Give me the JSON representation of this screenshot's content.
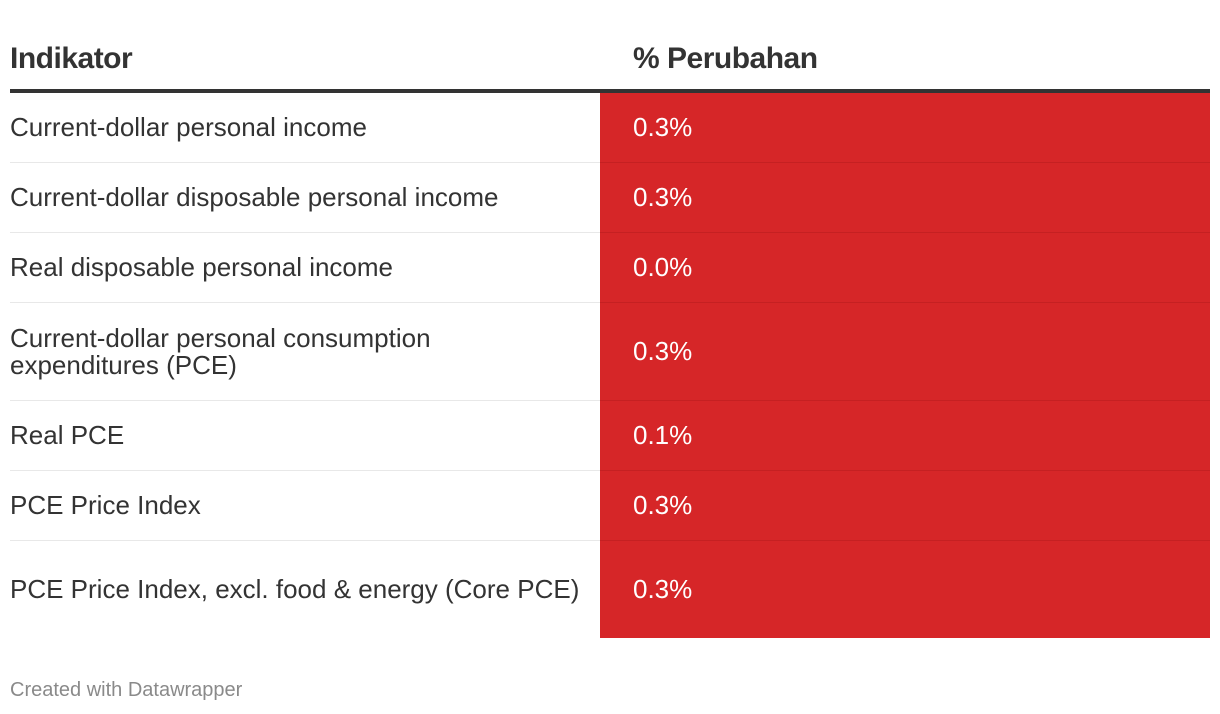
{
  "chart_data": {
    "type": "table",
    "columns": [
      "Indikator",
      "% Perubahan"
    ],
    "rows": [
      {
        "label": "Current-dollar personal income",
        "value": "0.3%"
      },
      {
        "label": "Current-dollar disposable personal income",
        "value": "0.3%"
      },
      {
        "label": "Real disposable personal income",
        "value": "0.0%"
      },
      {
        "label": "Current-dollar personal consumption expenditures (PCE)",
        "value": "0.3%"
      },
      {
        "label": "Real PCE",
        "value": "0.1%"
      },
      {
        "label": "PCE Price Index",
        "value": "0.3%"
      },
      {
        "label": "PCE Price Index, excl. food & energy (Core PCE)",
        "value": "0.3%"
      }
    ],
    "values": [
      0.3,
      0.3,
      0.0,
      0.3,
      0.1,
      0.3,
      0.3
    ],
    "value_cell_color": "#d62628",
    "header_color": "#333333"
  },
  "footer": {
    "credit": "Created with Datawrapper"
  }
}
